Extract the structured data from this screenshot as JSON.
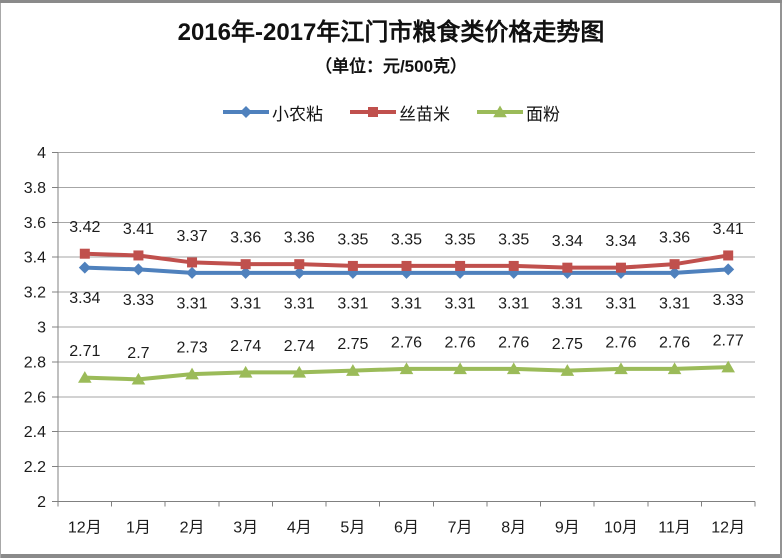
{
  "chart_data": {
    "type": "line",
    "title": "2016年-2017年江门市粮食类价格走势图",
    "subtitle": "（单位：元/500克）",
    "categories": [
      "12月",
      "1月",
      "2月",
      "3月",
      "4月",
      "5月",
      "6月",
      "7月",
      "8月",
      "9月",
      "10月",
      "11月",
      "12月"
    ],
    "series": [
      {
        "name": "小农粘",
        "color": "#4F81BD",
        "marker": "diamond",
        "label_position": "below",
        "values": [
          3.34,
          3.33,
          3.31,
          3.31,
          3.31,
          3.31,
          3.31,
          3.31,
          3.31,
          3.31,
          3.31,
          3.31,
          3.33
        ]
      },
      {
        "name": "丝苗米",
        "color": "#C0504D",
        "marker": "square",
        "label_position": "above",
        "values": [
          3.42,
          3.41,
          3.37,
          3.36,
          3.36,
          3.35,
          3.35,
          3.35,
          3.35,
          3.34,
          3.34,
          3.36,
          3.41
        ]
      },
      {
        "name": "面粉",
        "color": "#9BBB59",
        "marker": "triangle",
        "label_position": "above",
        "values": [
          2.71,
          2.7,
          2.73,
          2.74,
          2.74,
          2.75,
          2.76,
          2.76,
          2.76,
          2.75,
          2.76,
          2.76,
          2.77
        ]
      }
    ],
    "ylim": [
      2,
      4
    ],
    "ytick_step": 0.2,
    "grid": true,
    "data_labels": true,
    "legend_position": "top",
    "xlabel": "",
    "ylabel": ""
  },
  "colors": {
    "gridline": "#A6A6A6",
    "axis": "#808080",
    "text": "#1C1C1C",
    "frame_border": "#8A8A8A",
    "background": "#FFFFFF"
  }
}
